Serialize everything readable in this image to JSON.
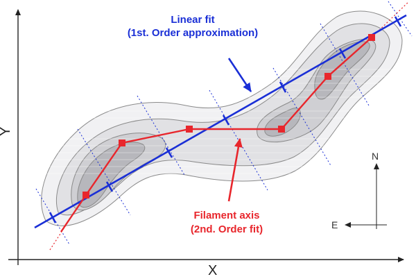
{
  "labels": {
    "linear_fit_line1": "Linear fit",
    "linear_fit_line2": "(1st. Order approximation)",
    "filament_axis_line1": "Filament axis",
    "filament_axis_line2": "(2nd. Order fit)",
    "x_axis": "X",
    "y_axis": "Y",
    "north": "N",
    "east": "E"
  },
  "colors": {
    "linear_fit": "#1a2fd6",
    "filament_axis": "#e8262c",
    "contour_stroke": "#8a8a8a",
    "axes": "#222222"
  }
}
